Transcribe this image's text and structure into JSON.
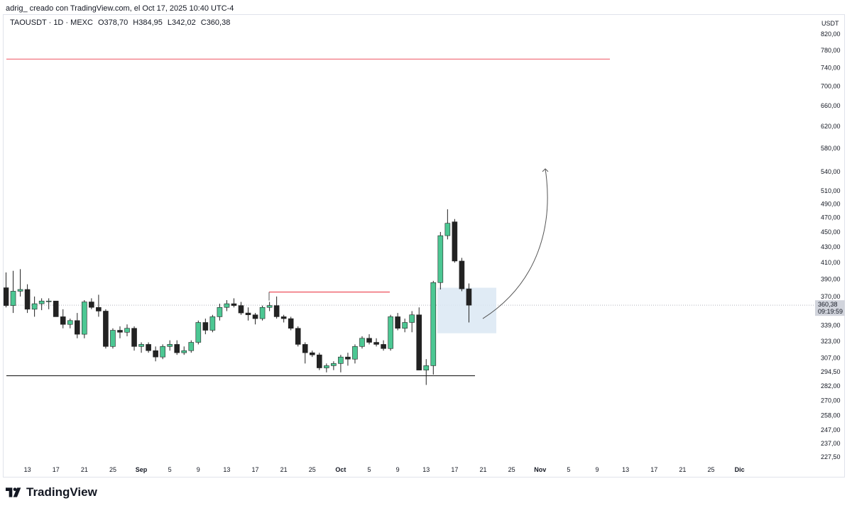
{
  "header": {
    "caption": "adrig_ creado con TradingView.com, el Oct 17, 2025 10:40 UTC-4"
  },
  "legend": {
    "symbol": "TAOUSDT · 1D · MEXC",
    "open": "O378,70",
    "high": "H384,95",
    "low": "L342,02",
    "close": "C360,38"
  },
  "price_axis": {
    "currency": "USDT",
    "ticks": [
      "820,00",
      "780,00",
      "740,00",
      "700,00",
      "660,00",
      "620,00",
      "580,00",
      "540,00",
      "510,00",
      "490,00",
      "470,00",
      "450,00",
      "430,00",
      "410,00",
      "390,00",
      "370,00",
      "339,00",
      "323,00",
      "307,00",
      "294,50",
      "282,00",
      "270,00",
      "258,00",
      "247,00",
      "237,00",
      "227,50"
    ],
    "last_price_label": "360,38",
    "countdown_label": "09:19:59"
  },
  "time_axis": {
    "ticks": [
      {
        "label": "13",
        "bold": false
      },
      {
        "label": "17",
        "bold": false
      },
      {
        "label": "21",
        "bold": false
      },
      {
        "label": "25",
        "bold": false
      },
      {
        "label": "Sep",
        "bold": true
      },
      {
        "label": "5",
        "bold": false
      },
      {
        "label": "9",
        "bold": false
      },
      {
        "label": "13",
        "bold": false
      },
      {
        "label": "17",
        "bold": false
      },
      {
        "label": "21",
        "bold": false
      },
      {
        "label": "25",
        "bold": false
      },
      {
        "label": "Oct",
        "bold": true
      },
      {
        "label": "5",
        "bold": false
      },
      {
        "label": "9",
        "bold": false
      },
      {
        "label": "13",
        "bold": false
      },
      {
        "label": "17",
        "bold": false
      },
      {
        "label": "21",
        "bold": false
      },
      {
        "label": "25",
        "bold": false
      },
      {
        "label": "Nov",
        "bold": true
      },
      {
        "label": "5",
        "bold": false
      },
      {
        "label": "9",
        "bold": false
      },
      {
        "label": "13",
        "bold": false
      },
      {
        "label": "17",
        "bold": false
      },
      {
        "label": "21",
        "bold": false
      },
      {
        "label": "25",
        "bold": false
      },
      {
        "label": "Dic",
        "bold": true
      }
    ]
  },
  "brand": {
    "name": "TradingView",
    "logo_icon": "tradingview-logo-icon"
  },
  "colors": {
    "up": "#4cc793",
    "down": "#222222",
    "resistance": "#f06772",
    "support": "#222222",
    "zone": "#dbe7f3",
    "arrow": "#555555"
  },
  "chart_data": {
    "type": "candlestick",
    "title": "TAOUSDT · 1D · MEXC",
    "scale": "logarithmic",
    "ylim": [
      220,
      840
    ],
    "ylabel": "USDT",
    "candles": [
      {
        "date": "2025-08-10",
        "o": 380,
        "h": 398,
        "l": 358,
        "c": 360
      },
      {
        "date": "2025-08-11",
        "o": 360,
        "h": 400,
        "l": 352,
        "c": 376
      },
      {
        "date": "2025-08-12",
        "o": 376,
        "h": 402,
        "l": 370,
        "c": 378
      },
      {
        "date": "2025-08-13",
        "o": 378,
        "h": 384,
        "l": 352,
        "c": 356
      },
      {
        "date": "2025-08-14",
        "o": 356,
        "h": 370,
        "l": 348,
        "c": 362
      },
      {
        "date": "2025-08-15",
        "o": 362,
        "h": 368,
        "l": 355,
        "c": 365
      },
      {
        "date": "2025-08-16",
        "o": 365,
        "h": 368,
        "l": 356,
        "c": 365
      },
      {
        "date": "2025-08-17",
        "o": 365,
        "h": 365,
        "l": 348,
        "c": 348
      },
      {
        "date": "2025-08-18",
        "o": 348,
        "h": 356,
        "l": 336,
        "c": 340
      },
      {
        "date": "2025-08-19",
        "o": 340,
        "h": 346,
        "l": 336,
        "c": 344
      },
      {
        "date": "2025-08-20",
        "o": 344,
        "h": 352,
        "l": 326,
        "c": 330
      },
      {
        "date": "2025-08-21",
        "o": 330,
        "h": 366,
        "l": 326,
        "c": 364
      },
      {
        "date": "2025-08-22",
        "o": 364,
        "h": 368,
        "l": 356,
        "c": 358
      },
      {
        "date": "2025-08-23",
        "o": 358,
        "h": 372,
        "l": 348,
        "c": 354
      },
      {
        "date": "2025-08-24",
        "o": 354,
        "h": 356,
        "l": 316,
        "c": 318
      },
      {
        "date": "2025-08-25",
        "o": 318,
        "h": 336,
        "l": 316,
        "c": 334
      },
      {
        "date": "2025-08-26",
        "o": 334,
        "h": 338,
        "l": 326,
        "c": 332
      },
      {
        "date": "2025-08-27",
        "o": 332,
        "h": 340,
        "l": 328,
        "c": 336
      },
      {
        "date": "2025-08-28",
        "o": 336,
        "h": 338,
        "l": 314,
        "c": 318
      },
      {
        "date": "2025-08-29",
        "o": 318,
        "h": 322,
        "l": 312,
        "c": 320
      },
      {
        "date": "2025-08-30",
        "o": 320,
        "h": 322,
        "l": 312,
        "c": 314
      },
      {
        "date": "2025-08-31",
        "o": 314,
        "h": 318,
        "l": 304,
        "c": 308
      },
      {
        "date": "2025-09-01",
        "o": 308,
        "h": 320,
        "l": 306,
        "c": 318
      },
      {
        "date": "2025-09-02",
        "o": 318,
        "h": 324,
        "l": 314,
        "c": 320
      },
      {
        "date": "2025-09-03",
        "o": 320,
        "h": 324,
        "l": 310,
        "c": 312
      },
      {
        "date": "2025-09-04",
        "o": 312,
        "h": 318,
        "l": 310,
        "c": 314
      },
      {
        "date": "2025-09-05",
        "o": 314,
        "h": 324,
        "l": 312,
        "c": 322
      },
      {
        "date": "2025-09-06",
        "o": 322,
        "h": 344,
        "l": 320,
        "c": 342
      },
      {
        "date": "2025-09-07",
        "o": 342,
        "h": 346,
        "l": 330,
        "c": 334
      },
      {
        "date": "2025-09-08",
        "o": 334,
        "h": 350,
        "l": 332,
        "c": 348
      },
      {
        "date": "2025-09-09",
        "o": 348,
        "h": 362,
        "l": 344,
        "c": 358
      },
      {
        "date": "2025-09-10",
        "o": 358,
        "h": 366,
        "l": 354,
        "c": 362
      },
      {
        "date": "2025-09-11",
        "o": 362,
        "h": 368,
        "l": 358,
        "c": 360
      },
      {
        "date": "2025-09-12",
        "o": 360,
        "h": 364,
        "l": 350,
        "c": 352
      },
      {
        "date": "2025-09-13",
        "o": 352,
        "h": 358,
        "l": 344,
        "c": 350
      },
      {
        "date": "2025-09-14",
        "o": 350,
        "h": 352,
        "l": 340,
        "c": 346
      },
      {
        "date": "2025-09-15",
        "o": 346,
        "h": 360,
        "l": 344,
        "c": 358
      },
      {
        "date": "2025-09-16",
        "o": 358,
        "h": 364,
        "l": 354,
        "c": 360
      },
      {
        "date": "2025-09-17",
        "o": 360,
        "h": 370,
        "l": 346,
        "c": 348
      },
      {
        "date": "2025-09-18",
        "o": 348,
        "h": 350,
        "l": 342,
        "c": 346
      },
      {
        "date": "2025-09-19",
        "o": 346,
        "h": 348,
        "l": 334,
        "c": 336
      },
      {
        "date": "2025-09-20",
        "o": 336,
        "h": 338,
        "l": 318,
        "c": 320
      },
      {
        "date": "2025-09-21",
        "o": 320,
        "h": 322,
        "l": 302,
        "c": 312
      },
      {
        "date": "2025-09-22",
        "o": 312,
        "h": 314,
        "l": 308,
        "c": 310
      },
      {
        "date": "2025-09-23",
        "o": 310,
        "h": 312,
        "l": 296,
        "c": 298
      },
      {
        "date": "2025-09-24",
        "o": 298,
        "h": 302,
        "l": 294,
        "c": 300
      },
      {
        "date": "2025-09-25",
        "o": 300,
        "h": 304,
        "l": 296,
        "c": 302
      },
      {
        "date": "2025-09-26",
        "o": 302,
        "h": 310,
        "l": 294,
        "c": 308
      },
      {
        "date": "2025-09-27",
        "o": 308,
        "h": 312,
        "l": 300,
        "c": 306
      },
      {
        "date": "2025-09-28",
        "o": 306,
        "h": 320,
        "l": 302,
        "c": 318
      },
      {
        "date": "2025-09-29",
        "o": 318,
        "h": 328,
        "l": 316,
        "c": 326
      },
      {
        "date": "2025-09-30",
        "o": 326,
        "h": 330,
        "l": 320,
        "c": 322
      },
      {
        "date": "2025-10-01",
        "o": 322,
        "h": 326,
        "l": 318,
        "c": 320
      },
      {
        "date": "2025-10-02",
        "o": 320,
        "h": 324,
        "l": 314,
        "c": 316
      },
      {
        "date": "2025-10-03",
        "o": 316,
        "h": 350,
        "l": 314,
        "c": 348
      },
      {
        "date": "2025-10-04",
        "o": 348,
        "h": 352,
        "l": 334,
        "c": 336
      },
      {
        "date": "2025-10-05",
        "o": 336,
        "h": 346,
        "l": 332,
        "c": 342
      },
      {
        "date": "2025-10-06",
        "o": 342,
        "h": 354,
        "l": 332,
        "c": 350
      },
      {
        "date": "2025-10-07",
        "o": 350,
        "h": 358,
        "l": 296,
        "c": 296
      },
      {
        "date": "2025-10-08",
        "o": 296,
        "h": 306,
        "l": 283,
        "c": 300
      },
      {
        "date": "2025-10-09",
        "o": 300,
        "h": 388,
        "l": 292,
        "c": 386
      },
      {
        "date": "2025-10-10",
        "o": 386,
        "h": 450,
        "l": 378,
        "c": 445
      },
      {
        "date": "2025-10-11",
        "o": 445,
        "h": 482,
        "l": 440,
        "c": 462
      },
      {
        "date": "2025-10-12",
        "o": 464,
        "h": 468,
        "l": 410,
        "c": 412
      },
      {
        "date": "2025-10-13",
        "o": 412,
        "h": 416,
        "l": 376,
        "c": 378.7
      },
      {
        "date": "2025-10-14",
        "o": 378.7,
        "h": 384.95,
        "l": 342.02,
        "c": 360.38
      }
    ],
    "annotations": [
      {
        "type": "hline",
        "name": "resistance-major",
        "price": 760
      },
      {
        "type": "hline",
        "name": "resistance-minor",
        "price": 375
      },
      {
        "type": "hline",
        "name": "support",
        "price": 291
      },
      {
        "type": "zone",
        "name": "demand-zone",
        "price_high": 380,
        "price_low": 331
      },
      {
        "type": "projection-arrow",
        "from_price": 346,
        "to_price": 545
      }
    ]
  }
}
